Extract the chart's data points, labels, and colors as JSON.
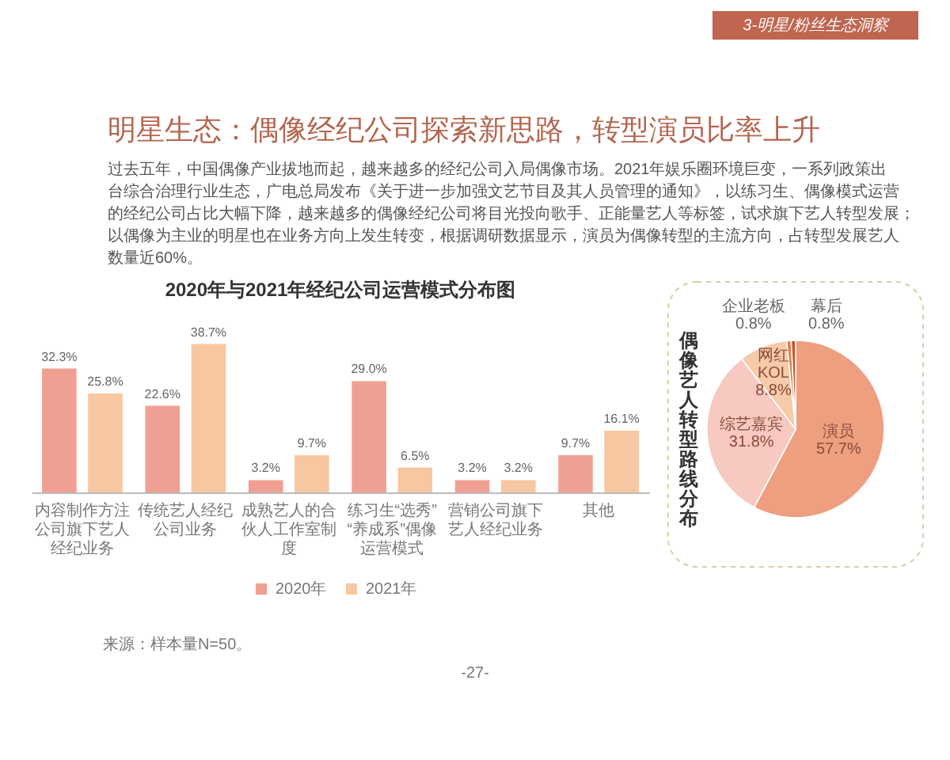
{
  "chart_data": [
    {
      "type": "other",
      "title": "明星生态：偶像经纪公司探索新思路，转型演员比率上升",
      "subtitle": "过去五年，中国偶像产业拔地而起，越来越多的经纪公司入局偶像市场。2021年娱乐圈环境巨变，一系列政策出台综合治理行业生态，广电总局发布《关于进一步加强文艺节目及其人员管理的通知》，以练习生、偶像模式运营的经纪公司占比大幅下降，越来越多的偶像经纪公司将目光投向歌手、正能量艺人等标签，试求旗下艺人转型发展；以偶像为主业的明星也在业务方向上发生转变，根据调研数据显示，演员为偶像转型的主流方向，占转型发展艺人数量近60%。",
      "annotations": [
        "3-明星/粉丝生态洞察"
      ]
    },
    {
      "type": "bar",
      "title": "2020年与2021年经纪公司运营模式分布图",
      "categories": [
        "内容制作方注公司旗下艺人经纪业务",
        "传统艺人经纪公司业务",
        "成熟艺人的合伙人工作室制度",
        "练习生“选秀”“养成系”偶像运营模式",
        "营销公司旗下艺人经纪业务",
        "其他"
      ],
      "series": [
        {
          "name": "2020年",
          "color": "#f0a092",
          "values": [
            32.3,
            22.6,
            3.2,
            29.0,
            3.2,
            9.7
          ],
          "value_labels": [
            "32.3%",
            "22.6%",
            "3.2%",
            "29.0%",
            "3.2%",
            "9.7%"
          ]
        },
        {
          "name": "2021年",
          "color": "#f7c7a1",
          "values": [
            25.8,
            38.7,
            9.7,
            6.5,
            3.2,
            16.1
          ],
          "value_labels": [
            "25.8%",
            "38.7%",
            "9.7%",
            "6.5%",
            "3.2%",
            "16.1%"
          ]
        }
      ],
      "legend": "bottom",
      "annotations": [
        "来源：样本量N=50。",
        "-27-"
      ]
    },
    {
      "type": "pie",
      "title": "偶像艺人转型路线分布",
      "categories": [
        "演员",
        "综艺嘉宾",
        "网红KOL",
        "企业老板",
        "幕后"
      ],
      "values": [
        57.7,
        31.8,
        8.8,
        0.8,
        0.8
      ],
      "colors": [
        "#ee9f80",
        "#f7c9c0",
        "#f6cba8",
        "#e37a45",
        "#c9552c"
      ],
      "value_labels": [
        "57.7%",
        "31.8%",
        "8.8%",
        "0.8%",
        "0.8%"
      ]
    }
  ]
}
